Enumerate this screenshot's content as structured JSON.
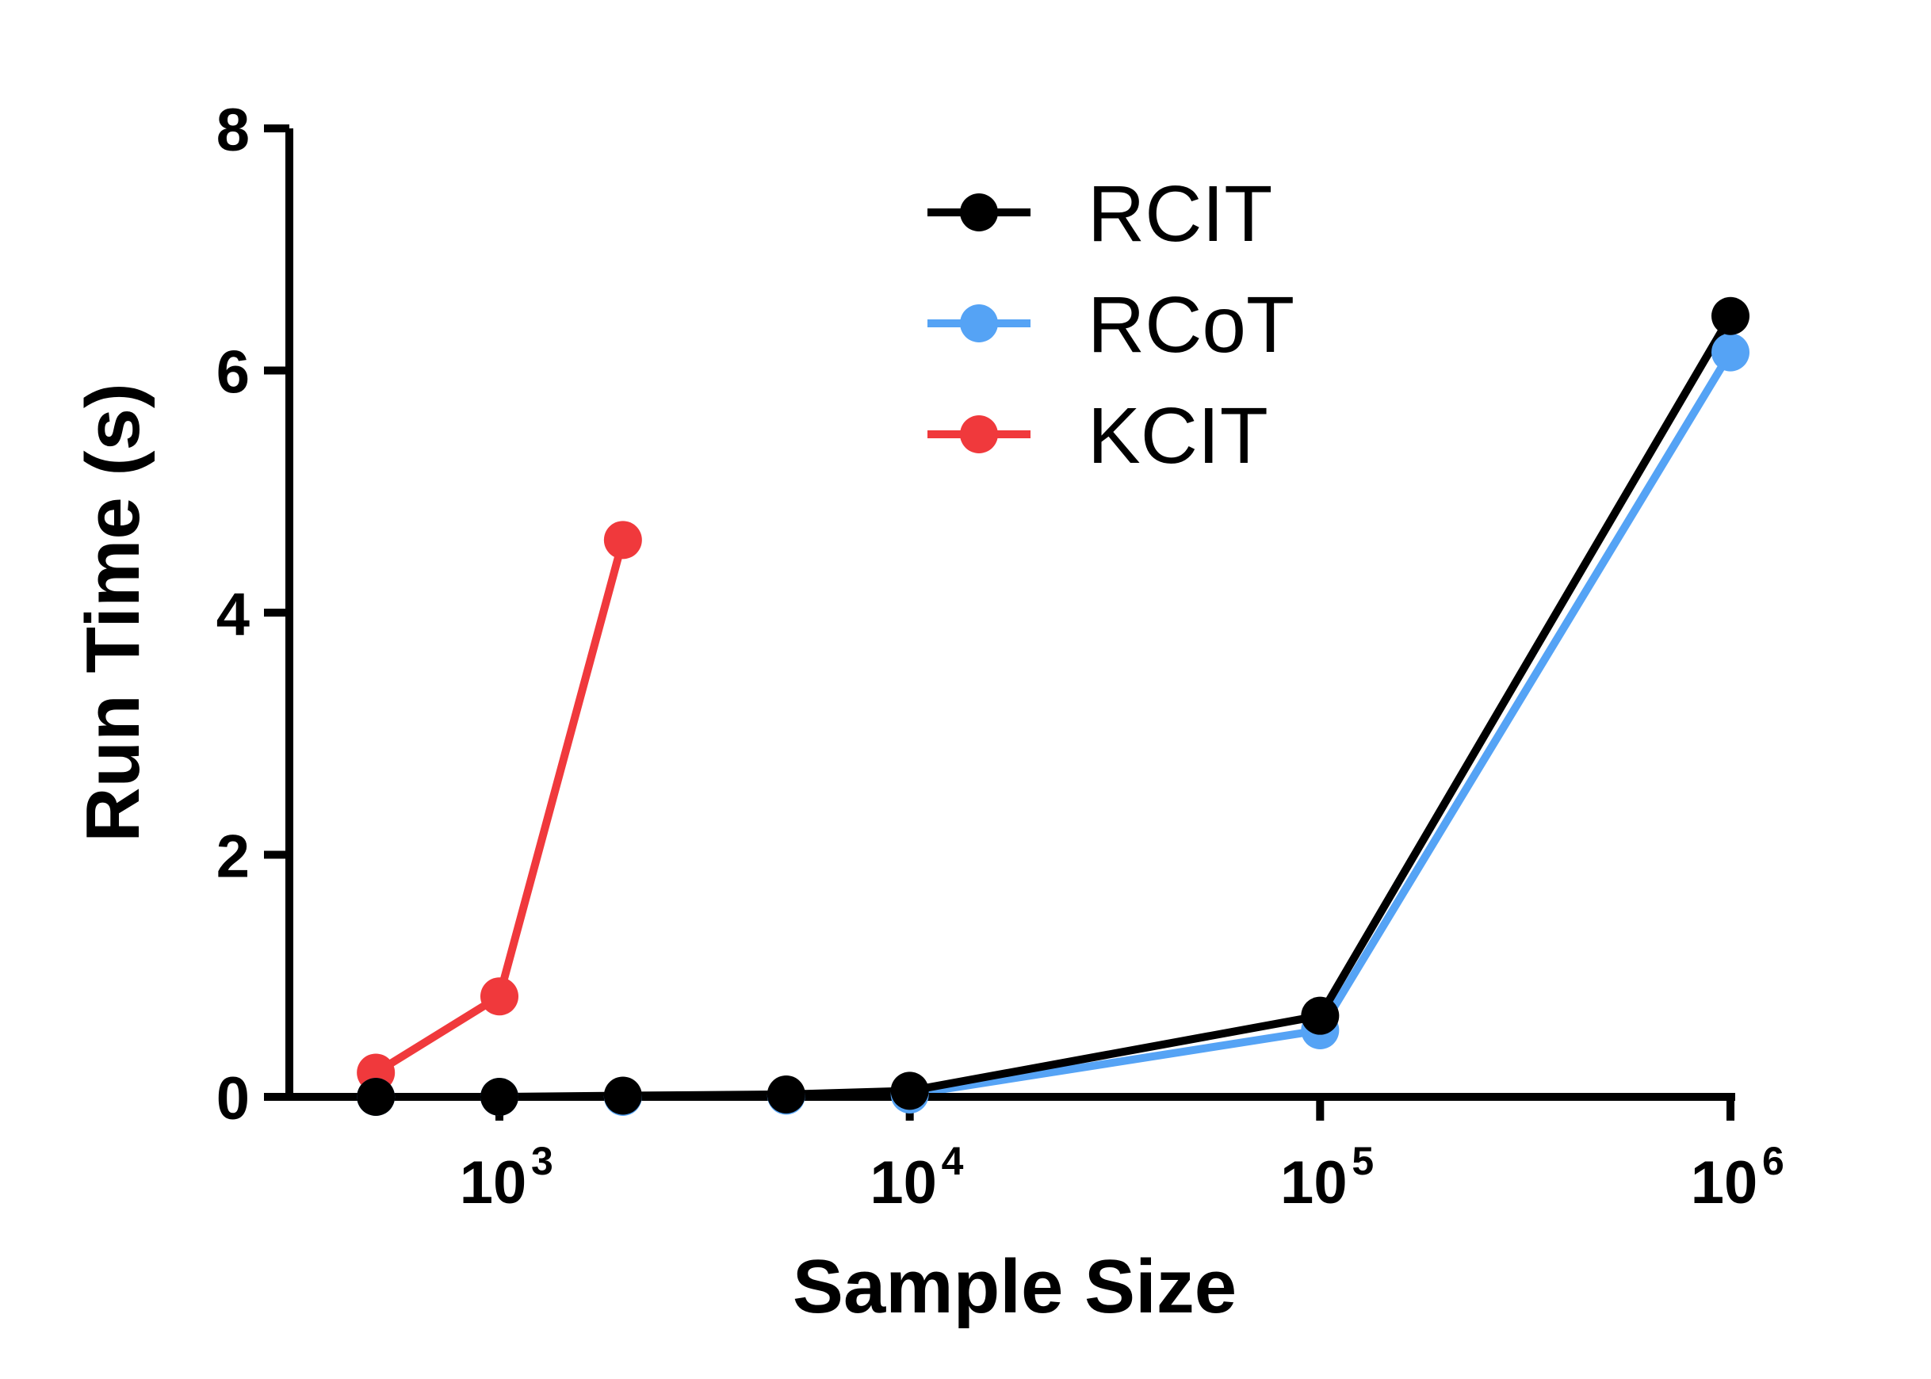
{
  "chart_data": {
    "type": "line",
    "title": "",
    "xlabel": "Sample Size",
    "ylabel": "Run Time (s)",
    "xscale": "log10",
    "xlim": [
      316,
      1000000
    ],
    "ylim": [
      0,
      8
    ],
    "yticks": [
      0,
      2,
      4,
      6,
      8
    ],
    "xticks": [
      {
        "value": 1000,
        "base": "10",
        "exp": "3"
      },
      {
        "value": 10000,
        "base": "10",
        "exp": "4"
      },
      {
        "value": 100000,
        "base": "10",
        "exp": "5"
      },
      {
        "value": 1000000,
        "base": "10",
        "exp": "6"
      }
    ],
    "legend_position": "top-center",
    "grid": false,
    "series": [
      {
        "name": "KCIT",
        "color": "#f0393c",
        "x": [
          500,
          1000,
          2000
        ],
        "values": [
          0.2,
          0.83,
          4.6
        ]
      },
      {
        "name": "RCoT",
        "color": "#55a3f5",
        "x": [
          500,
          1000,
          2000,
          5000,
          10000,
          100000,
          1000000
        ],
        "values": [
          0.0,
          0.0,
          0.0,
          0.01,
          0.02,
          0.55,
          6.15
        ]
      },
      {
        "name": "RCIT",
        "color": "#000000",
        "x": [
          500,
          1000,
          2000,
          5000,
          10000,
          100000,
          1000000
        ],
        "values": [
          0.0,
          0.0,
          0.01,
          0.02,
          0.05,
          0.67,
          6.45
        ]
      }
    ],
    "legend_order": [
      "RCIT",
      "RCoT",
      "KCIT"
    ]
  }
}
